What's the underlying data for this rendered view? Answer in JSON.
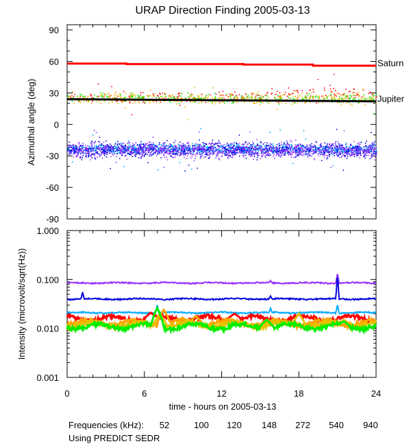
{
  "chart_data": [
    {
      "type": "scatter",
      "panel": "top",
      "title": "URAP Direction Finding  2005-03-13",
      "xlabel": "",
      "ylabel": "Azimuthal angle (deg)",
      "xlim": [
        0,
        24
      ],
      "ylim": [
        -90,
        95
      ],
      "yticks": [
        90,
        60,
        30,
        0,
        -30,
        -60,
        -90
      ],
      "yticklabels": [
        "90",
        "60",
        "30",
        "0",
        "-30",
        "-60",
        "-90"
      ],
      "reference_lines": [
        {
          "name": "Saturn",
          "label": "Saturn",
          "color": "#ff0000",
          "x": [
            0,
            4.6,
            4.6,
            13.7,
            13.7,
            19.1,
            19.1,
            24
          ],
          "y": [
            58,
            58,
            57.5,
            57.5,
            57,
            57,
            56,
            56
          ]
        },
        {
          "name": "Jupiter",
          "label": "Jupiter",
          "color": "#000000",
          "x": [
            0,
            24
          ],
          "y": [
            24,
            22
          ]
        }
      ],
      "series": [
        {
          "name": "52 kHz",
          "color": "#ff0000",
          "center": [
            [
              0,
              26
            ],
            [
              13,
              26
            ],
            [
              14,
              28
            ],
            [
              15,
              28
            ],
            [
              19.5,
              32
            ],
            [
              24,
              26
            ]
          ],
          "spread": 5
        },
        {
          "name": "100 kHz",
          "color": "#ffa500",
          "center": [
            [
              0,
              25
            ],
            [
              24,
              25
            ]
          ],
          "spread": 5
        },
        {
          "name": "120 kHz",
          "color": "#e6c200",
          "center": [
            [
              0,
              25
            ],
            [
              24,
              25
            ]
          ],
          "spread": 4
        },
        {
          "name": "148 kHz",
          "color": "#00ee00",
          "center": [
            [
              0,
              26
            ],
            [
              24,
              25
            ]
          ],
          "spread": 4
        },
        {
          "name": "272 kHz",
          "color": "#00aaff",
          "center": [
            [
              0,
              -23
            ],
            [
              24,
              -23
            ]
          ],
          "spread": 4
        },
        {
          "name": "540 kHz",
          "color": "#0000dd",
          "center": [
            [
              0,
              -24
            ],
            [
              24,
              -24
            ]
          ],
          "spread": 6
        },
        {
          "name": "940 kHz",
          "color": "#9933ff",
          "center": [
            [
              0,
              -24
            ],
            [
              24,
              -24
            ]
          ],
          "spread": 6
        }
      ]
    },
    {
      "type": "line",
      "panel": "bottom",
      "xlabel": "time - hours on 2005-03-13",
      "ylabel": "Intensity (microvolt/sqrt(Hz))",
      "xlim": [
        0,
        24
      ],
      "xticks": [
        0,
        6,
        12,
        18,
        24
      ],
      "xticklabels": [
        "0",
        "6",
        "12",
        "18",
        "24"
      ],
      "yscale": "log",
      "ylim": [
        0.001,
        1.0
      ],
      "yticks": [
        1.0,
        0.1,
        0.01,
        0.001
      ],
      "yticklabels": [
        "1.000",
        "0.100",
        "0.010",
        "0.001"
      ],
      "series": [
        {
          "name": "940 kHz",
          "color": "#9933ff",
          "baseline": 0.085,
          "spikes": [
            [
              15.8,
              0.095
            ],
            [
              21.0,
              0.13
            ]
          ]
        },
        {
          "name": "540 kHz",
          "color": "#0000dd",
          "baseline": 0.04,
          "spikes": [
            [
              1.2,
              0.055
            ],
            [
              15.8,
              0.046
            ],
            [
              21.0,
              0.11
            ]
          ]
        },
        {
          "name": "272 kHz",
          "color": "#00aaff",
          "baseline": 0.021,
          "spikes": [
            [
              7.0,
              0.03
            ],
            [
              15.8,
              0.026
            ],
            [
              21.0,
              0.03
            ]
          ]
        },
        {
          "name": "52 kHz",
          "color": "#ff0000",
          "baseline": 0.016,
          "spikes": [
            [
              6.5,
              0.021
            ],
            [
              13.0,
              0.02
            ],
            [
              18.0,
              0.019
            ]
          ]
        },
        {
          "name": "100 kHz",
          "color": "#ffa500",
          "baseline": 0.013,
          "spikes": [
            [
              7.5,
              0.024
            ],
            [
              10.0,
              0.018
            ]
          ]
        },
        {
          "name": "120 kHz",
          "color": "#e6c200",
          "baseline": 0.012,
          "spikes": [
            [
              7.2,
              0.02
            ],
            [
              18.0,
              0.02
            ],
            [
              21.5,
              0.015
            ]
          ]
        },
        {
          "name": "148 kHz",
          "color": "#00ee00",
          "baseline": 0.011,
          "spikes": [
            [
              7.0,
              0.026
            ],
            [
              15.5,
              0.015
            ],
            [
              21.5,
              0.014
            ]
          ]
        }
      ]
    }
  ],
  "legend": {
    "prefix": "Frequencies (kHz):",
    "items": [
      {
        "label": "52",
        "color": "#ff0000"
      },
      {
        "label": "100",
        "color": "#ffa500"
      },
      {
        "label": "120",
        "color": "#e6c200"
      },
      {
        "label": "148",
        "color": "#00ee00"
      },
      {
        "label": "272",
        "color": "#00aaff"
      },
      {
        "label": "540",
        "color": "#0000dd"
      },
      {
        "label": "940",
        "color": "#9933ff"
      }
    ]
  },
  "footnote": "Using PREDICT SEDR"
}
